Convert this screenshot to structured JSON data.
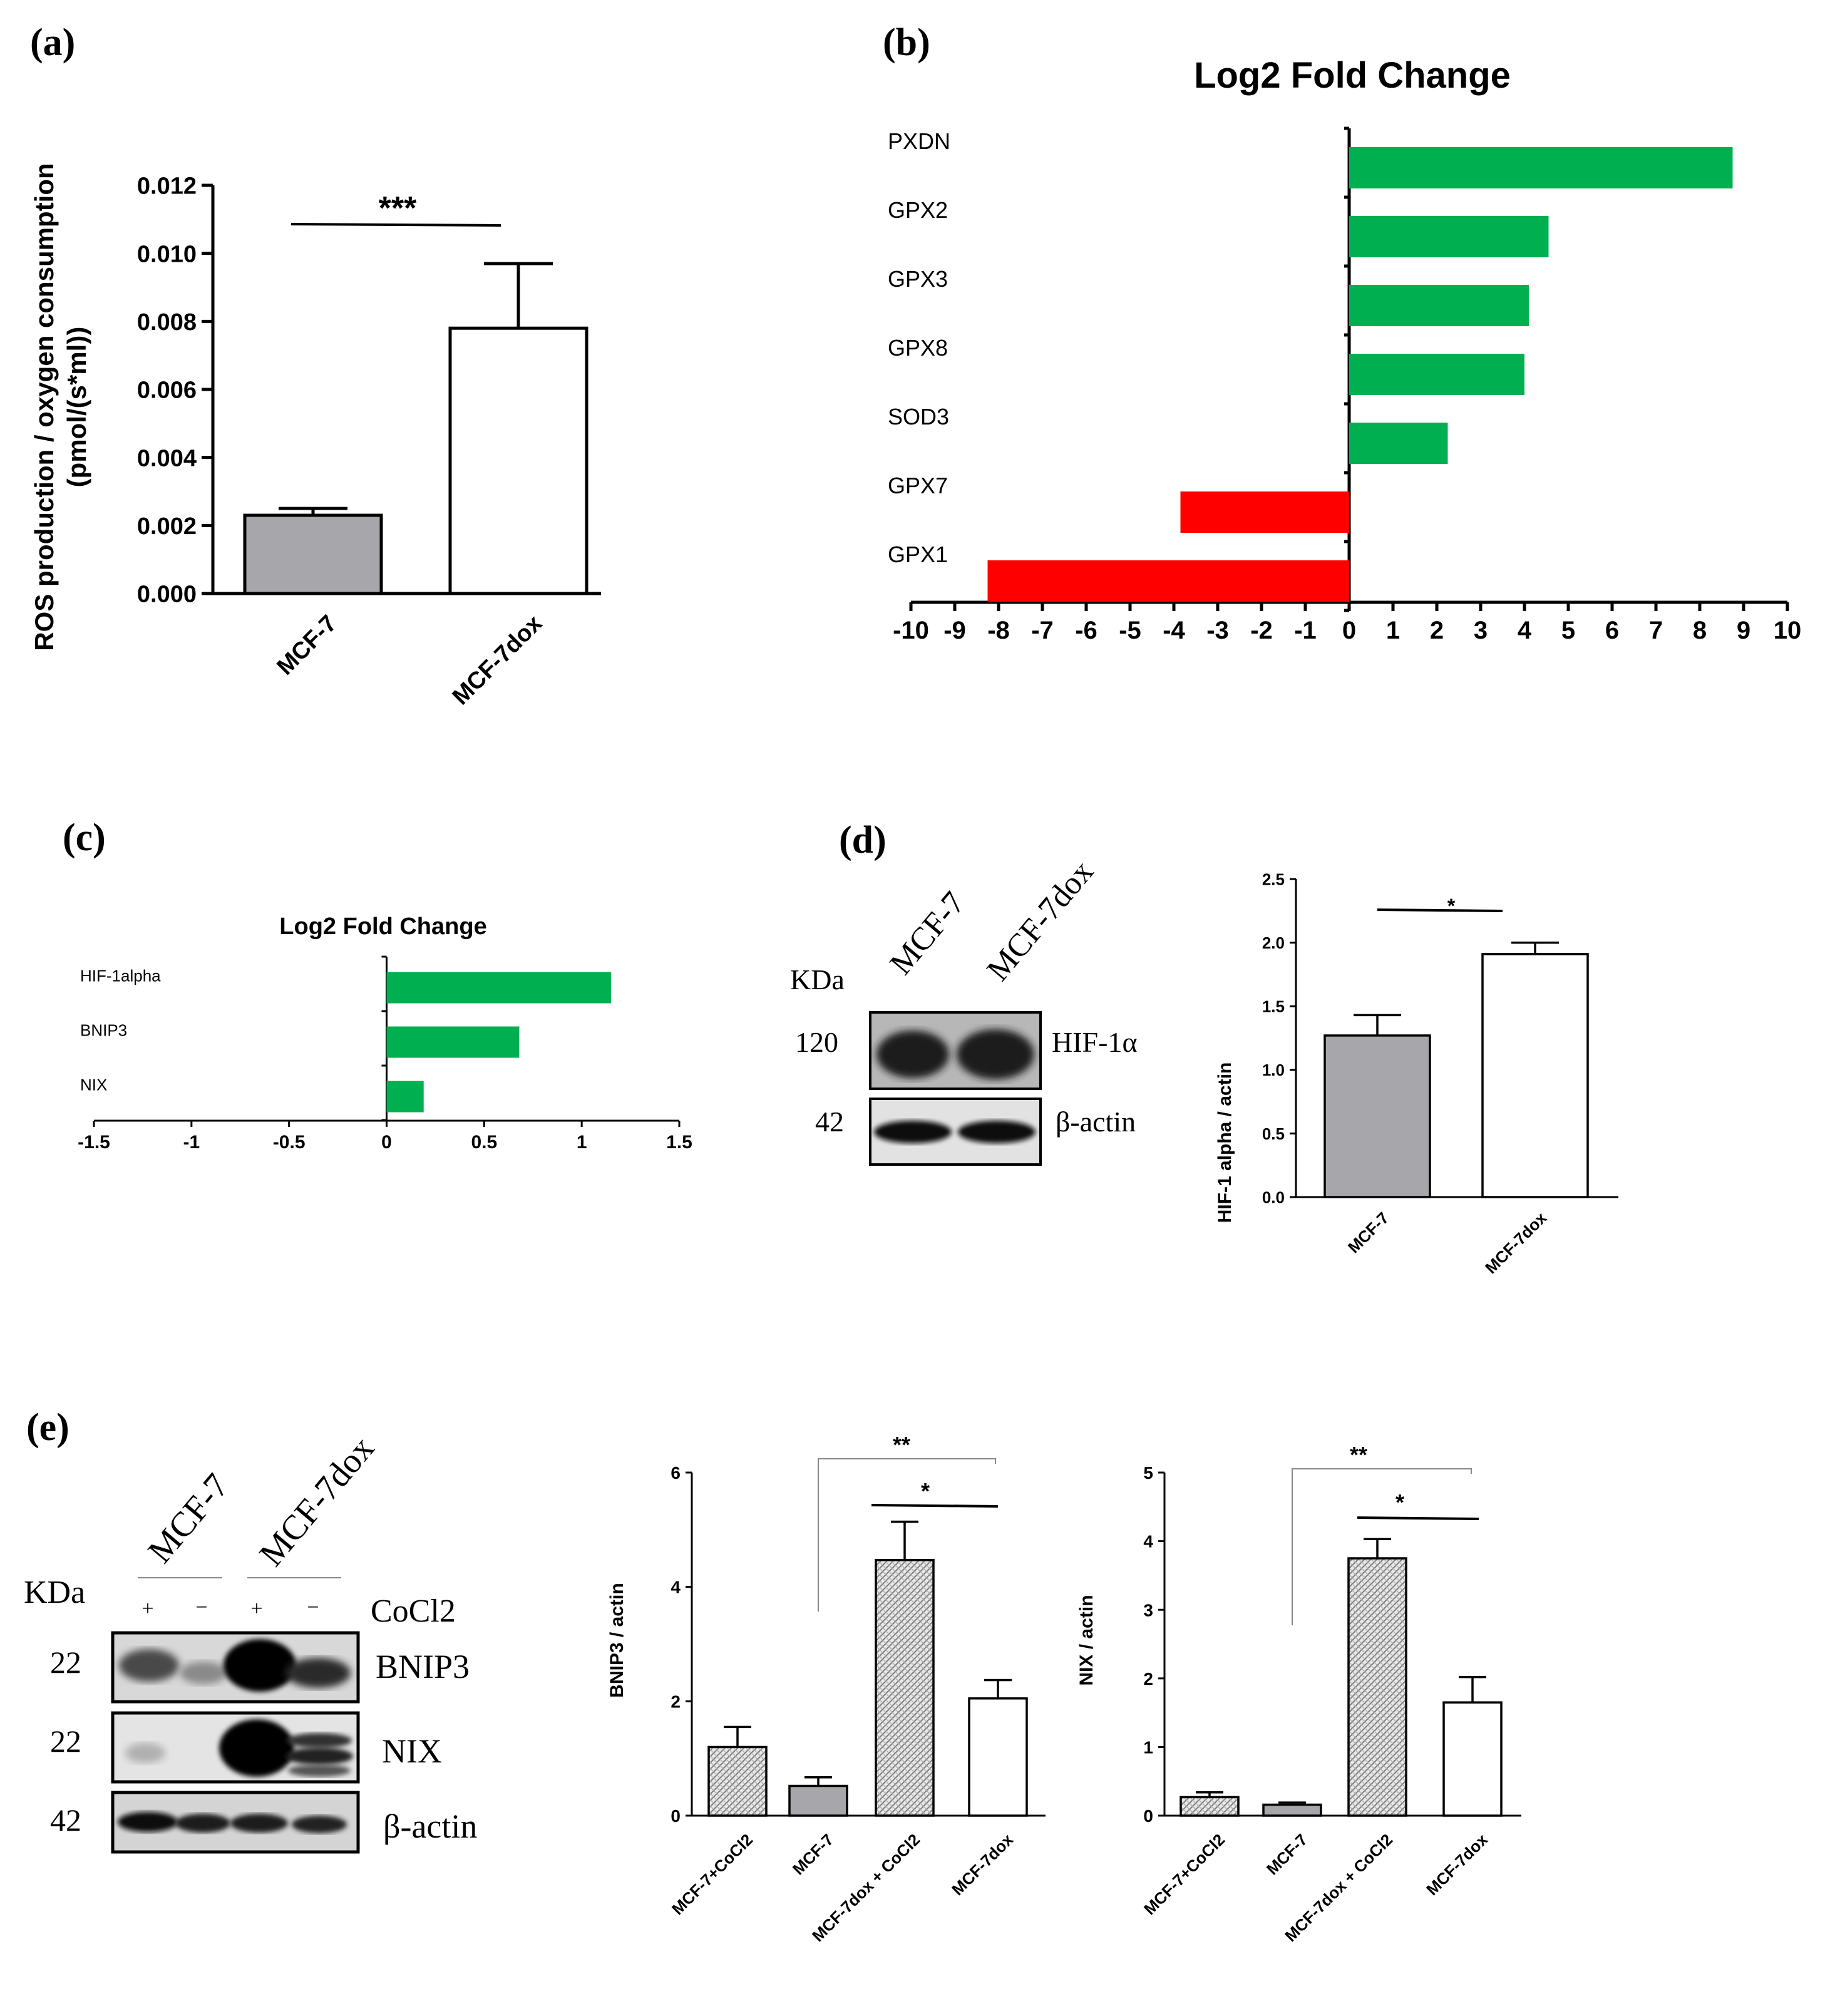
{
  "panels": {
    "a": {
      "label": "(a)",
      "ylabel_line1": "ROS production / oxygen consumption",
      "ylabel_line2": "(pmol/(s*ml))",
      "significance": "***",
      "categories": [
        "MCF-7",
        "MCF-7dox"
      ],
      "ticks": [
        "0.000",
        "0.002",
        "0.004",
        "0.006",
        "0.008",
        "0.010",
        "0.012"
      ]
    },
    "b": {
      "label": "(b)",
      "title": "Log2 Fold Change",
      "ticks": [
        "-10",
        "-9",
        "-8",
        "-7",
        "-6",
        "-5",
        "-4",
        "-3",
        "-2",
        "-1",
        "0",
        "1",
        "2",
        "3",
        "4",
        "5",
        "6",
        "7",
        "8",
        "9",
        "10"
      ]
    },
    "c": {
      "label": "(c)",
      "title": "Log2 Fold Change",
      "ticks": [
        "-1.5",
        "-1",
        "-0.5",
        "0",
        "0.5",
        "1",
        "1.5"
      ]
    },
    "d": {
      "label": "(d)",
      "blot": {
        "kda_label": "KDa",
        "lanes": [
          "MCF-7",
          "MCF-7dox"
        ],
        "rows": [
          {
            "kda": "120",
            "name": "HIF-1α"
          },
          {
            "kda": "42",
            "name": "β-actin"
          }
        ]
      },
      "ylabel": "HIF-1 alpha / actin",
      "significance": "*",
      "categories": [
        "MCF-7",
        "MCF-7dox"
      ],
      "ticks": [
        "0.0",
        "0.5",
        "1.0",
        "1.5",
        "2.0",
        "2.5"
      ]
    },
    "e": {
      "label": "(e)",
      "blot": {
        "kda_label": "KDa",
        "groups": [
          "MCF-7",
          "MCF-7dox"
        ],
        "treatment_label": "CoCl2",
        "signs": [
          "+",
          "−",
          "+",
          "−"
        ],
        "rows": [
          {
            "kda": "22",
            "name": "BNIP3"
          },
          {
            "kda": "22",
            "name": "NIX"
          },
          {
            "kda": "42",
            "name": "β-actin"
          }
        ]
      },
      "bnip3": {
        "ylabel": "BNIP3 / actin",
        "sig_long": "**",
        "sig_short": "*",
        "ticks": [
          "0",
          "2",
          "4",
          "6"
        ],
        "categories": [
          "MCF-7+CoCl2",
          "MCF-7",
          "MCF-7dox + CoCl2",
          "MCF-7dox"
        ]
      },
      "nix": {
        "ylabel": "NIX / actin",
        "sig_long": "**",
        "sig_short": "*",
        "ticks": [
          "0",
          "1",
          "2",
          "3",
          "4",
          "5"
        ],
        "categories": [
          "MCF-7+CoCl2",
          "MCF-7",
          "MCF-7dox + CoCl2",
          "MCF-7dox"
        ]
      }
    }
  },
  "colors": {
    "up": "#00b050",
    "down": "#ff0000",
    "gray_bar": "#a6a6ab",
    "white_bar": "#ffffff",
    "hatched_bar": "#d9d9d9"
  },
  "chart_data": [
    {
      "id": "a",
      "type": "bar",
      "title": "",
      "ylabel": "ROS production / oxygen consumption (pmol/(s*ml))",
      "categories": [
        "MCF-7",
        "MCF-7dox"
      ],
      "values": [
        0.0023,
        0.0078
      ],
      "errors": [
        0.0002,
        0.0019
      ],
      "ylim": [
        0,
        0.012
      ]
    },
    {
      "id": "b",
      "type": "bar",
      "orientation": "horizontal",
      "title": "Log2 Fold Change",
      "categories": [
        "PXDN",
        "GPX2",
        "GPX3",
        "GPX8",
        "SOD3",
        "GPX7",
        "GPX1"
      ],
      "values": [
        8.75,
        4.55,
        4.1,
        4.0,
        2.25,
        -3.85,
        -8.25
      ],
      "xlim": [
        -10,
        10
      ]
    },
    {
      "id": "c",
      "type": "bar",
      "orientation": "horizontal",
      "title": "Log2 Fold Change",
      "categories": [
        "HIF-1alpha",
        "BNIP3",
        "NIX"
      ],
      "values": [
        1.15,
        0.68,
        0.19
      ],
      "xlim": [
        -1.5,
        1.5
      ]
    },
    {
      "id": "d",
      "type": "bar",
      "ylabel": "HIF-1 alpha / actin",
      "categories": [
        "MCF-7",
        "MCF-7dox"
      ],
      "values": [
        1.27,
        1.91
      ],
      "errors": [
        0.16,
        0.09
      ],
      "ylim": [
        0,
        2.5
      ]
    },
    {
      "id": "e-bnip3",
      "type": "bar",
      "ylabel": "BNIP3 / actin",
      "categories": [
        "MCF-7+CoCl2",
        "MCF-7",
        "MCF-7dox + CoCl2",
        "MCF-7dox"
      ],
      "values": [
        1.2,
        0.52,
        4.47,
        2.05
      ],
      "errors": [
        0.35,
        0.15,
        0.67,
        0.32
      ],
      "ylim": [
        0,
        6
      ]
    },
    {
      "id": "e-nix",
      "type": "bar",
      "ylabel": "NIX / actin",
      "categories": [
        "MCF-7+CoCl2",
        "MCF-7",
        "MCF-7dox + CoCl2",
        "MCF-7dox"
      ],
      "values": [
        0.27,
        0.16,
        3.75,
        1.65
      ],
      "errors": [
        0.07,
        0.03,
        0.28,
        0.37
      ],
      "ylim": [
        0,
        5
      ]
    }
  ]
}
